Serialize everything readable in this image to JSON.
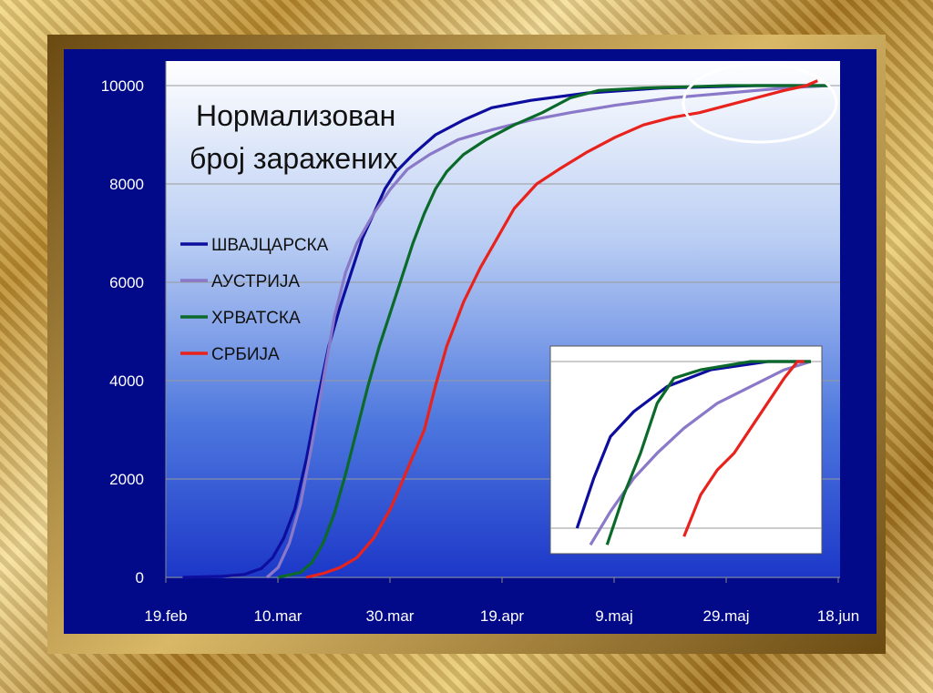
{
  "chart_data": {
    "type": "line",
    "title_line1": "Нормализован",
    "title_line2": "број заражених",
    "x_ticks": [
      "19.feb",
      "10.mar",
      "30.mar",
      "19.apr",
      "9.maj",
      "29.maj",
      "18.jun"
    ],
    "y_ticks": [
      "0",
      "2000",
      "4000",
      "6000",
      "8000",
      "10000"
    ],
    "ylim": [
      0,
      10000
    ],
    "x_days_range": [
      0,
      120
    ],
    "grid": true,
    "legend_position": "left, below title",
    "series": [
      {
        "name": "ШВАЈЦАРСКА",
        "color": "#0d0d9e",
        "points": [
          [
            3,
            0
          ],
          [
            10,
            20
          ],
          [
            14,
            60
          ],
          [
            17,
            180
          ],
          [
            19,
            400
          ],
          [
            21,
            800
          ],
          [
            23,
            1400
          ],
          [
            25,
            2400
          ],
          [
            27,
            3600
          ],
          [
            29,
            4700
          ],
          [
            31,
            5500
          ],
          [
            33,
            6200
          ],
          [
            35,
            6900
          ],
          [
            37,
            7400
          ],
          [
            39,
            7900
          ],
          [
            41,
            8250
          ],
          [
            44,
            8600
          ],
          [
            48,
            9000
          ],
          [
            53,
            9300
          ],
          [
            58,
            9550
          ],
          [
            65,
            9700
          ],
          [
            75,
            9850
          ],
          [
            88,
            9950
          ],
          [
            105,
            10000
          ],
          [
            118,
            10000
          ]
        ]
      },
      {
        "name": "АУСТРИЈА",
        "color": "#8a78c8",
        "points": [
          [
            18,
            0
          ],
          [
            20,
            200
          ],
          [
            22,
            700
          ],
          [
            24,
            1500
          ],
          [
            26,
            2700
          ],
          [
            28,
            4000
          ],
          [
            30,
            5300
          ],
          [
            32,
            6200
          ],
          [
            34,
            6800
          ],
          [
            37,
            7400
          ],
          [
            40,
            7900
          ],
          [
            43,
            8300
          ],
          [
            47,
            8600
          ],
          [
            52,
            8900
          ],
          [
            58,
            9100
          ],
          [
            65,
            9300
          ],
          [
            72,
            9450
          ],
          [
            80,
            9600
          ],
          [
            90,
            9750
          ],
          [
            100,
            9850
          ],
          [
            110,
            9950
          ],
          [
            118,
            10000
          ]
        ]
      },
      {
        "name": "ХРВАТСКА",
        "color": "#0b6a2a",
        "points": [
          [
            20,
            0
          ],
          [
            24,
            100
          ],
          [
            26,
            300
          ],
          [
            28,
            700
          ],
          [
            30,
            1300
          ],
          [
            32,
            2100
          ],
          [
            34,
            3000
          ],
          [
            36,
            3900
          ],
          [
            38,
            4700
          ],
          [
            40,
            5400
          ],
          [
            42,
            6100
          ],
          [
            44,
            6800
          ],
          [
            46,
            7400
          ],
          [
            48,
            7900
          ],
          [
            50,
            8250
          ],
          [
            53,
            8600
          ],
          [
            57,
            8900
          ],
          [
            62,
            9200
          ],
          [
            67,
            9450
          ],
          [
            72,
            9750
          ],
          [
            77,
            9900
          ],
          [
            85,
            9950
          ],
          [
            100,
            10000
          ],
          [
            118,
            10000
          ]
        ]
      },
      {
        "name": "СРБИЈА",
        "color": "#e8221c",
        "points": [
          [
            25,
            0
          ],
          [
            28,
            80
          ],
          [
            31,
            200
          ],
          [
            34,
            400
          ],
          [
            37,
            800
          ],
          [
            40,
            1400
          ],
          [
            43,
            2200
          ],
          [
            46,
            3000
          ],
          [
            48,
            3900
          ],
          [
            50,
            4700
          ],
          [
            53,
            5600
          ],
          [
            56,
            6300
          ],
          [
            59,
            6900
          ],
          [
            62,
            7500
          ],
          [
            66,
            8000
          ],
          [
            70,
            8300
          ],
          [
            75,
            8650
          ],
          [
            80,
            8950
          ],
          [
            85,
            9200
          ],
          [
            90,
            9350
          ],
          [
            95,
            9450
          ],
          [
            100,
            9600
          ],
          [
            105,
            9750
          ],
          [
            110,
            9900
          ],
          [
            114,
            10000
          ],
          [
            116,
            10100
          ]
        ]
      }
    ],
    "inset_note": "magnified view of the top-right region (circled)"
  }
}
